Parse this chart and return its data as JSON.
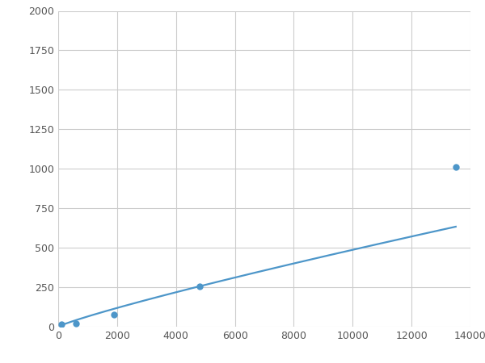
{
  "x": [
    100,
    600,
    1900,
    4800,
    13500
  ],
  "y": [
    15,
    22,
    78,
    253,
    1010
  ],
  "line_color": "#4d96c9",
  "marker_color": "#4d96c9",
  "marker_size": 6,
  "line_width": 1.6,
  "xlim": [
    0,
    14000
  ],
  "ylim": [
    0,
    2000
  ],
  "xticks": [
    0,
    2000,
    4000,
    6000,
    8000,
    10000,
    12000,
    14000
  ],
  "yticks": [
    0,
    250,
    500,
    750,
    1000,
    1250,
    1500,
    1750,
    2000
  ],
  "grid_color": "#cccccc",
  "background_color": "#ffffff",
  "figure_background": "#ffffff",
  "tick_labelsize": 9,
  "tick_color": "#555555"
}
